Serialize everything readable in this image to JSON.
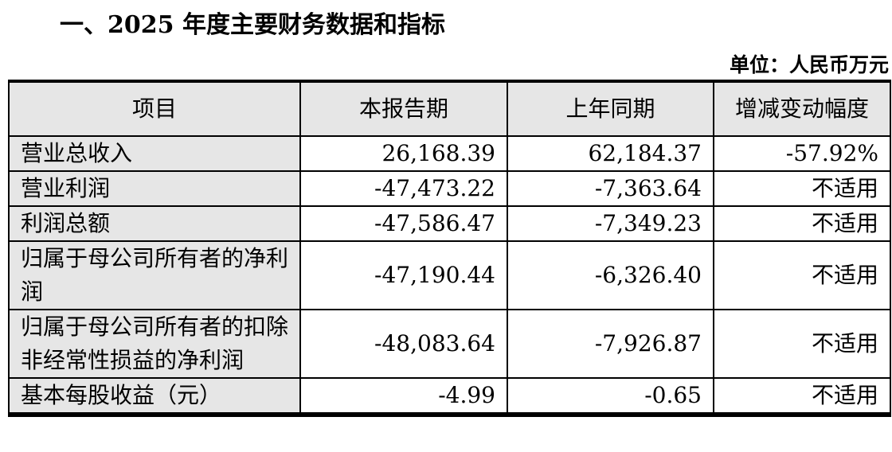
{
  "title": "一、2025 年度主要财务数据和指标",
  "unit": "单位：人民币万元",
  "table": {
    "headers": [
      "项目",
      "本报告期",
      "上年同期",
      "增减变动幅度"
    ],
    "rows": [
      {
        "item": "营业总收入",
        "current": "26,168.39",
        "previous": "62,184.37",
        "change": "-57.92%"
      },
      {
        "item": "营业利润",
        "current": "-47,473.22",
        "previous": "-7,363.64",
        "change": "不适用"
      },
      {
        "item": "利润总额",
        "current": "-47,586.47",
        "previous": "-7,349.23",
        "change": "不适用"
      },
      {
        "item": "归属于母公司所有者的净利润",
        "current": "-47,190.44",
        "previous": "-6,326.40",
        "change": "不适用"
      },
      {
        "item": "归属于母公司所有者的扣除非经常性损益的净利润",
        "current": "-48,083.64",
        "previous": "-7,926.87",
        "change": "不适用"
      },
      {
        "item": "基本每股收益（元）",
        "current": "-4.99",
        "previous": "-0.65",
        "change": "不适用"
      }
    ]
  }
}
